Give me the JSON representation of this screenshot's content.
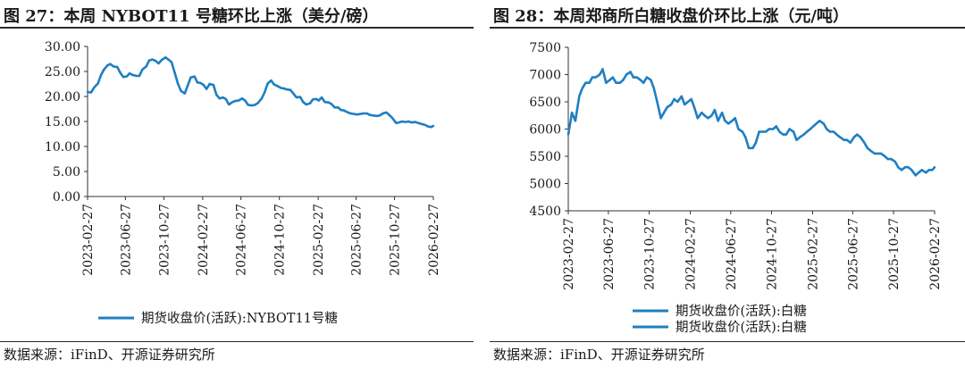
{
  "colors": {
    "series": "#1f7fc2",
    "axis": "#333333"
  },
  "source_label": "数据来源：iFinD、开源证券研究所",
  "chart_data": [
    {
      "id": "fig27",
      "type": "line",
      "title": "图 27：本周 NYBOT11 号糖环比上涨（美分/磅）",
      "xlabel": "",
      "ylabel": "",
      "ylim": [
        0,
        30
      ],
      "yticks": [
        "0.00",
        "5.00",
        "10.00",
        "15.00",
        "20.00",
        "25.00",
        "30.00"
      ],
      "ytick_values": [
        0,
        5,
        10,
        15,
        20,
        25,
        30
      ],
      "xlim": [
        "2023-02-27",
        "2026-02-27"
      ],
      "xticks": [
        "2023-02-27",
        "2023-06-27",
        "2023-10-27",
        "2024-02-27",
        "2024-06-27",
        "2024-10-27",
        "2025-02-27",
        "2025-06-27",
        "2025-10-27",
        "2026-02-27"
      ],
      "legend": [
        "期货收盘价(活跃):NYBOT11号糖"
      ],
      "legend_position": "bottom",
      "series": [
        {
          "name": "期货收盘价(活跃):NYBOT11号糖",
          "x": [
            "2023-02-27",
            "2023-03-10",
            "2023-03-20",
            "2023-04-01",
            "2023-04-10",
            "2023-04-20",
            "2023-05-01",
            "2023-05-10",
            "2023-05-20",
            "2023-06-01",
            "2023-06-10",
            "2023-06-20",
            "2023-07-01",
            "2023-07-10",
            "2023-07-20",
            "2023-08-01",
            "2023-08-10",
            "2023-08-20",
            "2023-09-01",
            "2023-09-10",
            "2023-09-20",
            "2023-10-01",
            "2023-10-10",
            "2023-10-20",
            "2023-11-01",
            "2023-11-10",
            "2023-11-20",
            "2023-12-01",
            "2023-12-10",
            "2023-12-20",
            "2024-01-01",
            "2024-01-10",
            "2024-01-20",
            "2024-02-01",
            "2024-02-10",
            "2024-02-20",
            "2024-03-01",
            "2024-03-10",
            "2024-03-20",
            "2024-04-01",
            "2024-04-10",
            "2024-04-20",
            "2024-05-01",
            "2024-05-10",
            "2024-05-20",
            "2024-06-01",
            "2024-06-10",
            "2024-06-20",
            "2024-07-01",
            "2024-07-10",
            "2024-07-20",
            "2024-08-01",
            "2024-08-10",
            "2024-08-20",
            "2024-09-01",
            "2024-09-10",
            "2024-09-20",
            "2024-10-01",
            "2024-10-10",
            "2024-10-20",
            "2024-11-01",
            "2024-11-10",
            "2024-11-20",
            "2024-12-01",
            "2024-12-10",
            "2024-12-20",
            "2025-01-01",
            "2025-01-10",
            "2025-01-20",
            "2025-02-01",
            "2025-02-10",
            "2025-02-20",
            "2025-03-01",
            "2025-03-10",
            "2025-03-20",
            "2025-04-01",
            "2025-04-10",
            "2025-04-20",
            "2025-05-01",
            "2025-05-10",
            "2025-05-20",
            "2025-06-01",
            "2025-06-10",
            "2025-06-20",
            "2025-07-01",
            "2025-07-10",
            "2025-07-20",
            "2025-08-01",
            "2025-08-10",
            "2025-08-20",
            "2025-09-01",
            "2025-09-10",
            "2025-09-20",
            "2025-10-01",
            "2025-10-10",
            "2025-10-20",
            "2025-11-01",
            "2025-11-10",
            "2025-11-20",
            "2025-12-01",
            "2025-12-10",
            "2025-12-20",
            "2026-01-01",
            "2026-01-10",
            "2026-01-20",
            "2026-02-01",
            "2026-02-10",
            "2026-02-20",
            "2026-02-27"
          ],
          "values": [
            20.9,
            20.8,
            21.8,
            22.6,
            24.2,
            25.4,
            26.2,
            26.5,
            26.0,
            25.9,
            24.8,
            23.9,
            24.0,
            24.6,
            24.3,
            24.1,
            24.1,
            25.4,
            26.0,
            27.2,
            27.4,
            27.1,
            26.6,
            27.3,
            27.8,
            27.4,
            26.9,
            24.6,
            22.6,
            21.1,
            20.6,
            22.1,
            23.8,
            24.0,
            22.8,
            22.7,
            22.3,
            21.5,
            22.5,
            22.3,
            20.4,
            19.6,
            19.8,
            19.5,
            18.4,
            18.9,
            19.1,
            19.2,
            19.6,
            19.2,
            18.3,
            18.2,
            18.3,
            18.7,
            19.6,
            20.8,
            22.6,
            23.2,
            22.4,
            22.1,
            21.7,
            21.6,
            21.4,
            21.3,
            20.6,
            19.8,
            19.9,
            18.9,
            18.4,
            18.6,
            19.4,
            19.5,
            19.2,
            19.8,
            18.9,
            18.8,
            18.5,
            17.8,
            17.8,
            17.3,
            17.2,
            16.8,
            16.6,
            16.5,
            16.4,
            16.5,
            16.6,
            16.6,
            16.3,
            16.2,
            16.1,
            16.2,
            16.6,
            16.8,
            16.3,
            15.7,
            14.7,
            14.8,
            15.0,
            14.9,
            15.0,
            14.8,
            14.9,
            14.7,
            14.5,
            14.3,
            14.0,
            13.9,
            14.1
          ]
        }
      ]
    },
    {
      "id": "fig28",
      "type": "line",
      "title": "图 28：本周郑商所白糖收盘价环比上涨（元/吨）",
      "xlabel": "",
      "ylabel": "",
      "ylim": [
        4500,
        7500
      ],
      "yticks": [
        "4500",
        "5000",
        "5500",
        "6000",
        "6500",
        "7000",
        "7500"
      ],
      "ytick_values": [
        4500,
        5000,
        5500,
        6000,
        6500,
        7000,
        7500
      ],
      "xlim": [
        "2023-02-27",
        "2026-02-27"
      ],
      "xticks": [
        "2023-02-27",
        "2023-06-27",
        "2023-10-27",
        "2024-02-27",
        "2024-06-27",
        "2024-10-27",
        "2025-02-27",
        "2025-06-27",
        "2025-10-27",
        "2026-02-27"
      ],
      "legend": [
        "期货收盘价(活跃):白糖",
        "期货收盘价(活跃):白糖"
      ],
      "legend_position": "bottom",
      "series": [
        {
          "name": "期货收盘价(活跃):白糖",
          "x": [
            "2023-02-27",
            "2023-03-10",
            "2023-03-20",
            "2023-04-01",
            "2023-04-10",
            "2023-04-20",
            "2023-05-01",
            "2023-05-10",
            "2023-05-20",
            "2023-06-01",
            "2023-06-10",
            "2023-06-20",
            "2023-07-01",
            "2023-07-10",
            "2023-07-20",
            "2023-08-01",
            "2023-08-10",
            "2023-08-20",
            "2023-09-01",
            "2023-09-10",
            "2023-09-20",
            "2023-10-01",
            "2023-10-10",
            "2023-10-20",
            "2023-11-01",
            "2023-11-10",
            "2023-11-20",
            "2023-12-01",
            "2023-12-10",
            "2023-12-20",
            "2024-01-01",
            "2024-01-10",
            "2024-01-20",
            "2024-02-01",
            "2024-02-10",
            "2024-02-20",
            "2024-03-01",
            "2024-03-10",
            "2024-03-20",
            "2024-04-01",
            "2024-04-10",
            "2024-04-20",
            "2024-05-01",
            "2024-05-10",
            "2024-05-20",
            "2024-06-01",
            "2024-06-10",
            "2024-06-20",
            "2024-07-01",
            "2024-07-10",
            "2024-07-20",
            "2024-08-01",
            "2024-08-10",
            "2024-08-20",
            "2024-09-01",
            "2024-09-10",
            "2024-09-20",
            "2024-10-01",
            "2024-10-10",
            "2024-10-20",
            "2024-11-01",
            "2024-11-10",
            "2024-11-20",
            "2024-12-01",
            "2024-12-10",
            "2024-12-20",
            "2025-01-01",
            "2025-01-10",
            "2025-01-20",
            "2025-02-01",
            "2025-02-10",
            "2025-02-20",
            "2025-03-01",
            "2025-03-10",
            "2025-03-20",
            "2025-04-01",
            "2025-04-10",
            "2025-04-20",
            "2025-05-01",
            "2025-05-10",
            "2025-05-20",
            "2025-06-01",
            "2025-06-10",
            "2025-06-20",
            "2025-07-01",
            "2025-07-10",
            "2025-07-20",
            "2025-08-01",
            "2025-08-10",
            "2025-08-20",
            "2025-09-01",
            "2025-09-10",
            "2025-09-20",
            "2025-10-01",
            "2025-10-10",
            "2025-10-20",
            "2025-11-01",
            "2025-11-10",
            "2025-11-20",
            "2025-12-01",
            "2025-12-10",
            "2025-12-20",
            "2026-01-01",
            "2026-01-10",
            "2026-01-20",
            "2026-02-01",
            "2026-02-10",
            "2026-02-20",
            "2026-02-27"
          ],
          "values": [
            5900,
            6300,
            6150,
            6600,
            6750,
            6850,
            6850,
            6950,
            6950,
            7000,
            7100,
            6850,
            6900,
            6950,
            6850,
            6850,
            6900,
            7000,
            7050,
            6950,
            6950,
            6900,
            6850,
            6950,
            6900,
            6750,
            6500,
            6200,
            6300,
            6400,
            6450,
            6550,
            6500,
            6600,
            6450,
            6500,
            6550,
            6400,
            6200,
            6300,
            6250,
            6200,
            6250,
            6350,
            6150,
            6300,
            6150,
            6100,
            6150,
            6200,
            6000,
            5950,
            5850,
            5650,
            5650,
            5750,
            5950,
            5950,
            5950,
            6000,
            6000,
            6050,
            5950,
            5900,
            5900,
            6000,
            5950,
            5800,
            5850,
            5900,
            5950,
            6000,
            6050,
            6100,
            6150,
            6100,
            6000,
            5950,
            5950,
            5900,
            5850,
            5800,
            5800,
            5750,
            5850,
            5900,
            5850,
            5750,
            5650,
            5600,
            5550,
            5550,
            5550,
            5500,
            5450,
            5450,
            5400,
            5300,
            5250,
            5300,
            5300,
            5250,
            5150,
            5200,
            5250,
            5200,
            5250,
            5250,
            5300
          ]
        }
      ]
    }
  ]
}
